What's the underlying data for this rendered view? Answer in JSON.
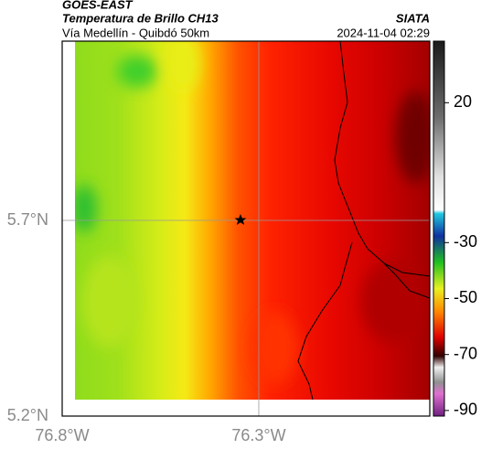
{
  "header": {
    "source": "GOES-EAST",
    "title": "Temperatura de Brillo CH13",
    "subtitle": "Vía Medellín - Quibdó 50km",
    "agency": "SIATA",
    "timestamp": "2024-11-04 02:29"
  },
  "map": {
    "lonlim": [
      -76.8,
      -75.865
    ],
    "latlim": [
      5.2,
      6.158
    ],
    "lon_ticks": [
      {
        "value": -76.8,
        "label": "76.8°W"
      },
      {
        "value": -76.3,
        "label": "76.3°W"
      }
    ],
    "lat_ticks": [
      {
        "value": 5.7,
        "label": "5.7°N"
      },
      {
        "value": 5.2,
        "label": "5.2°N"
      }
    ],
    "grid": true
  },
  "colorbar": {
    "lim": [
      -92,
      42
    ],
    "ticks": [
      20,
      -30,
      -50,
      -70,
      -90
    ]
  }
}
